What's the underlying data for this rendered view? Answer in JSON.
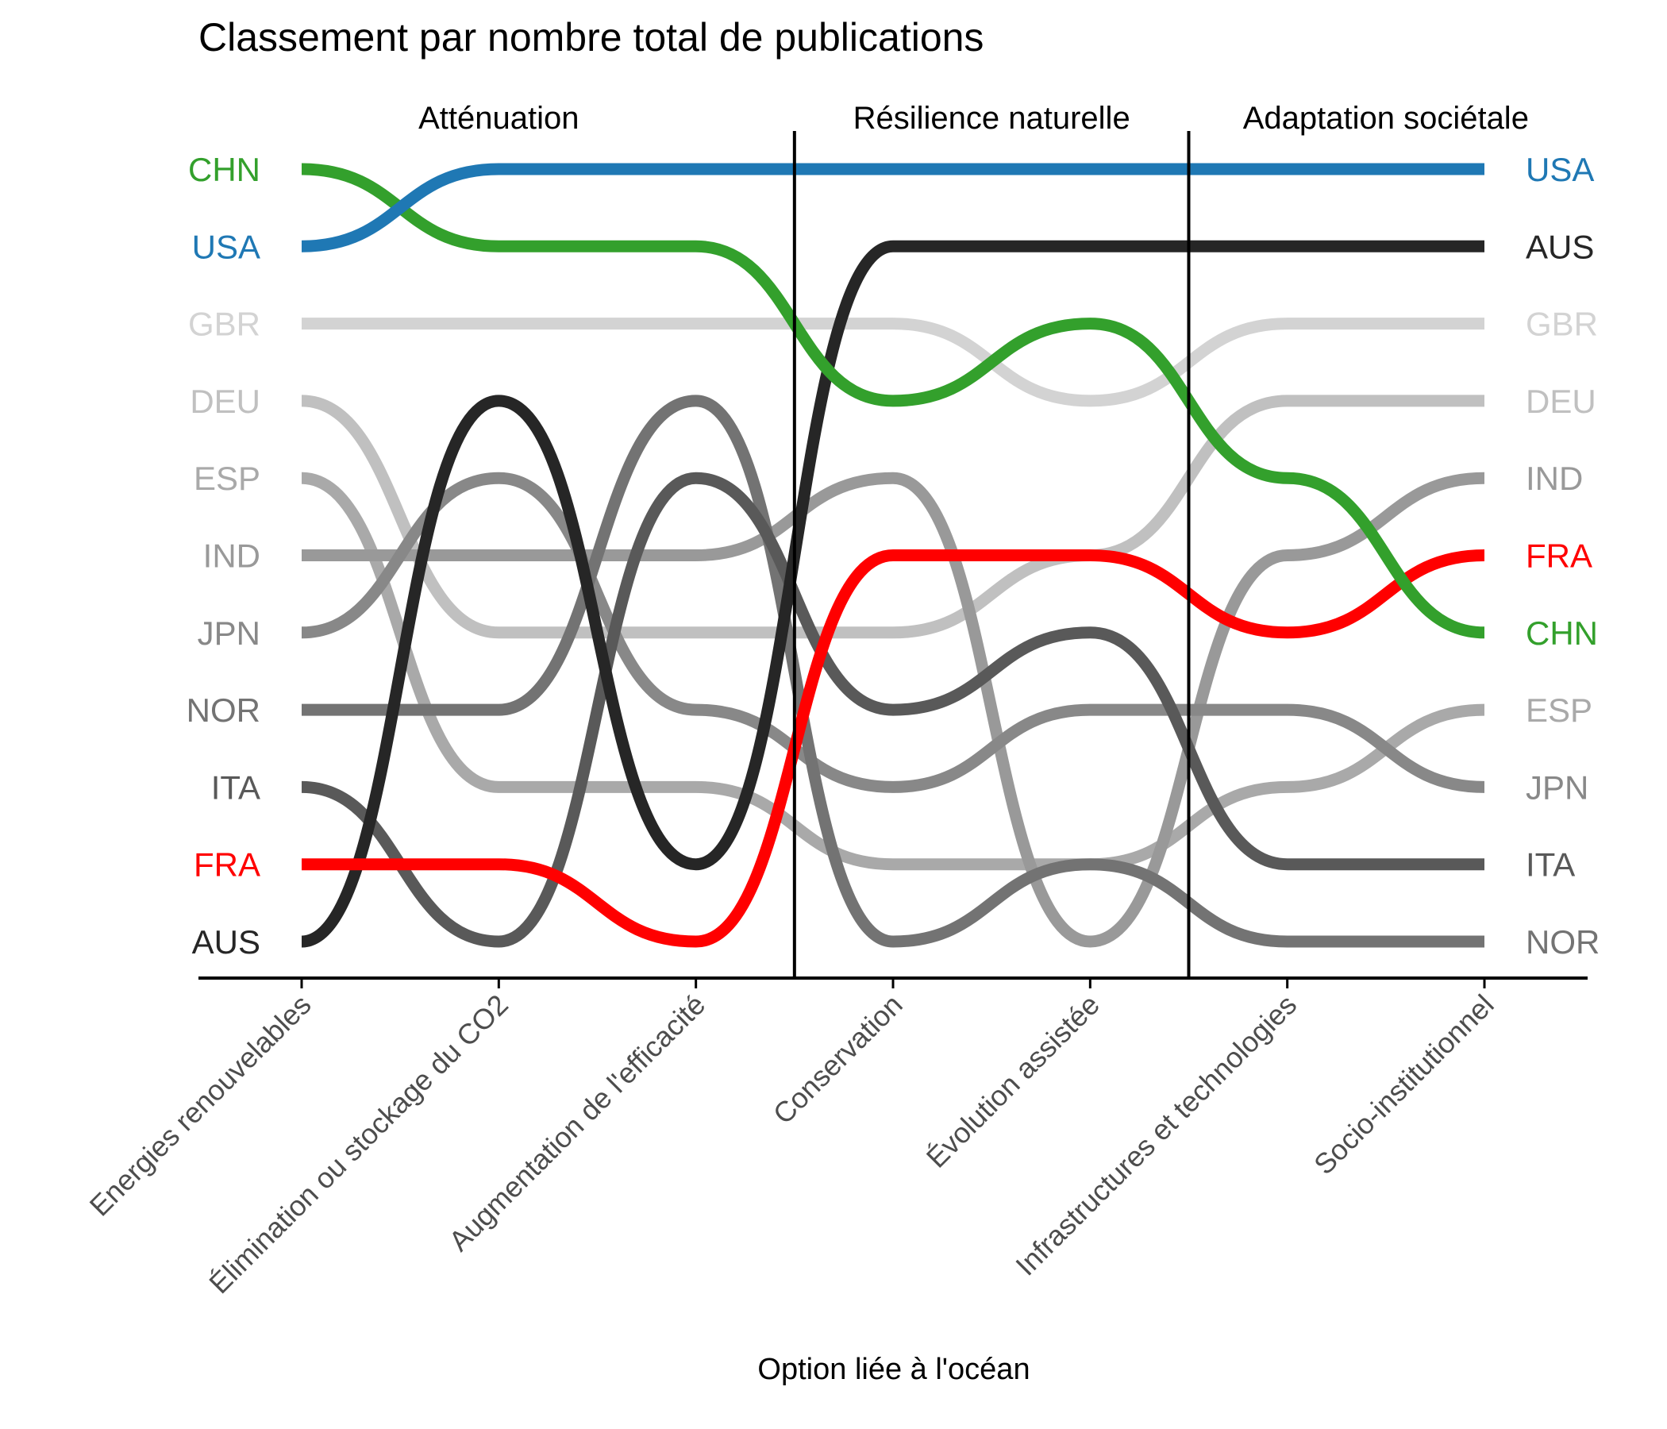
{
  "chart_data": {
    "type": "line",
    "title": "Classement par nombre total de publications",
    "xlabel": "Option liée à l'océan",
    "ylabel": "",
    "categories": [
      "Energies renouvelables",
      "Élimination ou stockage du CO2",
      "Augmentation de l'efficacité",
      "Conservation",
      "Évolution assistée",
      "Infrastructures et technologies",
      "Socio-institutionnel"
    ],
    "groups": [
      {
        "label": "Atténuation",
        "start": 0,
        "end": 2
      },
      {
        "label": "Résilience naturelle",
        "start": 3,
        "end": 4
      },
      {
        "label": "Adaptation sociétale",
        "start": 5,
        "end": 6
      }
    ],
    "rank_range": [
      1,
      11
    ],
    "left_labels": [
      "CHN",
      "USA",
      "GBR",
      "DEU",
      "ESP",
      "IND",
      "JPN",
      "NOR",
      "ITA",
      "FRA",
      "AUS"
    ],
    "right_labels": [
      "USA",
      "AUS",
      "GBR",
      "DEU",
      "IND",
      "FRA",
      "CHN",
      "ESP",
      "JPN",
      "ITA",
      "NOR"
    ],
    "series": [
      {
        "name": "GBR",
        "color": "#d3d3d3",
        "ranks": [
          3,
          3,
          3,
          3,
          4,
          3,
          3
        ]
      },
      {
        "name": "DEU",
        "color": "#c0c0c0",
        "ranks": [
          4,
          7,
          7,
          7,
          6,
          4,
          4
        ]
      },
      {
        "name": "ESP",
        "color": "#a9a9a9",
        "ranks": [
          5,
          9,
          9,
          10,
          10,
          9,
          8
        ]
      },
      {
        "name": "IND",
        "color": "#999999",
        "ranks": [
          6,
          6,
          6,
          5,
          11,
          6,
          5
        ]
      },
      {
        "name": "JPN",
        "color": "#888888",
        "ranks": [
          7,
          5,
          8,
          9,
          8,
          8,
          9
        ]
      },
      {
        "name": "NOR",
        "color": "#737373",
        "ranks": [
          8,
          8,
          4,
          11,
          10,
          11,
          11
        ]
      },
      {
        "name": "ITA",
        "color": "#595959",
        "ranks": [
          9,
          11,
          5,
          8,
          7,
          10,
          10
        ]
      },
      {
        "name": "AUS",
        "color": "#262626",
        "ranks": [
          11,
          4,
          10,
          2,
          2,
          2,
          2
        ]
      },
      {
        "name": "FRA",
        "color": "#ff0000",
        "ranks": [
          10,
          10,
          11,
          6,
          6,
          7,
          6
        ]
      },
      {
        "name": "CHN",
        "color": "#33a02c",
        "ranks": [
          1,
          2,
          2,
          4,
          3,
          5,
          7
        ]
      },
      {
        "name": "USA",
        "color": "#1f78b4",
        "ranks": [
          2,
          1,
          1,
          1,
          1,
          1,
          1
        ]
      }
    ]
  }
}
